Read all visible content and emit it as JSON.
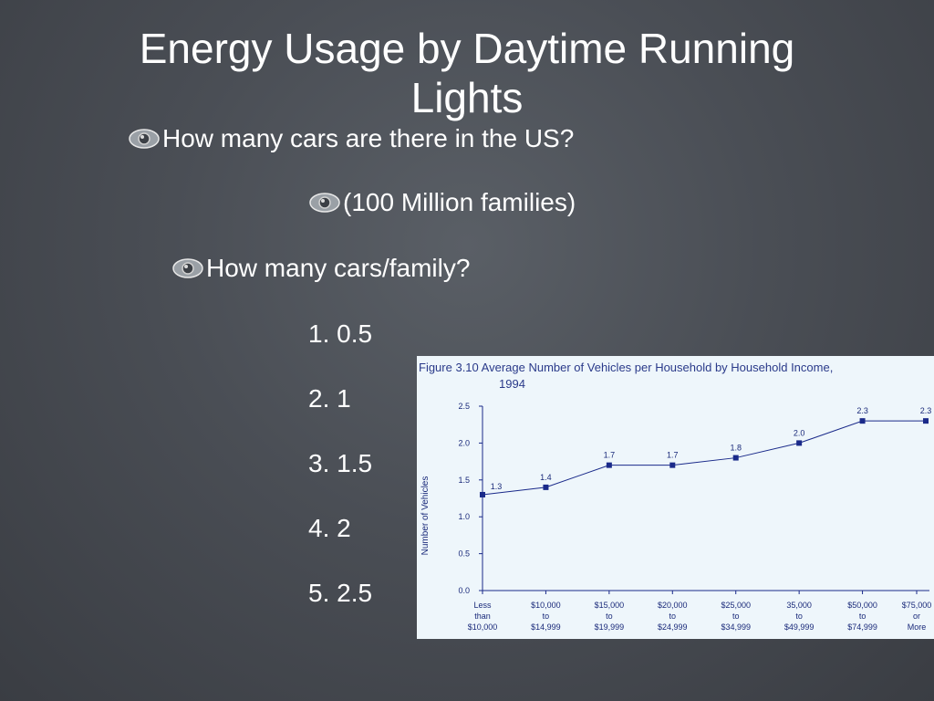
{
  "slide": {
    "title_line1": "Energy Usage by Daytime Running",
    "title_line2": "Lights",
    "bullets": [
      {
        "text": "How many cars are there in the US?"
      },
      {
        "text": "(100 Million families)"
      },
      {
        "text": "How many cars/family?"
      }
    ],
    "options": [
      "1. 0.5",
      "2. 1",
      "3. 1.5",
      "4. 2",
      "5. 2.5"
    ],
    "bullet_icon": "swirl-eye-icon"
  },
  "chart_data": {
    "type": "line",
    "title": "Figure 3.10  Average Number of Vehicles per Household by Household Income,",
    "subtitle": "1994",
    "xlabel": "",
    "ylabel": "Number of Vehicles",
    "ylim": [
      0,
      2.5
    ],
    "yticks": [
      "0.0",
      "0.5",
      "1.0",
      "1.5",
      "2.0",
      "2.5"
    ],
    "categories": [
      [
        "Less",
        "than",
        "$10,000"
      ],
      [
        "$10,000",
        "to",
        "$14,999"
      ],
      [
        "$15,000",
        "to",
        "$19,999"
      ],
      [
        "$20,000",
        "to",
        "$24,999"
      ],
      [
        "$25,000",
        "to",
        "$34,999"
      ],
      [
        "35,000",
        "to",
        "$49,999"
      ],
      [
        "$50,000",
        "to",
        "$74,999"
      ],
      [
        "$75,000",
        "or",
        "More"
      ]
    ],
    "values": [
      1.3,
      1.4,
      1.7,
      1.7,
      1.8,
      2.0,
      2.3,
      2.3
    ],
    "data_labels": [
      "1.3",
      "1.4",
      "1.7",
      "1.7",
      "1.8",
      "2.0",
      "2.3",
      "2.3"
    ],
    "grid": false,
    "colors": {
      "line": "#1a2a8a",
      "panel": "#eef6fb",
      "text": "#1a2a7a"
    }
  }
}
